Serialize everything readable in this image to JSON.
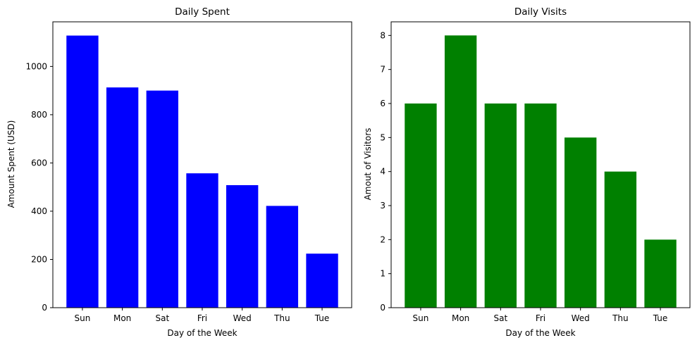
{
  "chart_data": [
    {
      "type": "bar",
      "title": "Daily Spent",
      "xlabel": "Day of the Week",
      "ylabel": "Amount Spent (USD)",
      "categories": [
        "Sun",
        "Mon",
        "Sat",
        "Fri",
        "Wed",
        "Thu",
        "Tue"
      ],
      "values": [
        1128,
        913,
        900,
        557,
        508,
        422,
        224
      ],
      "ylim": [
        0,
        1185
      ],
      "yticks": [
        0,
        200,
        400,
        600,
        800,
        1000
      ],
      "color": "#0000ff",
      "grid": false
    },
    {
      "type": "bar",
      "title": "Daily Visits",
      "xlabel": "Day of the Week",
      "ylabel": "Amout of Visitors",
      "categories": [
        "Sun",
        "Mon",
        "Sat",
        "Fri",
        "Wed",
        "Thu",
        "Tue"
      ],
      "values": [
        6,
        8,
        6,
        6,
        5,
        4,
        2
      ],
      "ylim": [
        0,
        8.4
      ],
      "yticks": [
        0,
        1,
        2,
        3,
        4,
        5,
        6,
        7,
        8
      ],
      "color": "#008000",
      "grid": false
    }
  ]
}
